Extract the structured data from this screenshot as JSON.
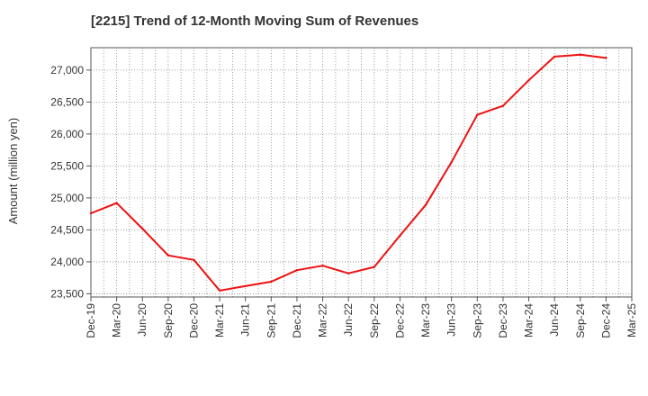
{
  "chart_data": {
    "type": "line",
    "title": "[2215]  Trend of 12-Month Moving Sum of Revenues",
    "xlabel": "",
    "ylabel": "Amount (million yen)",
    "ylim": [
      23450,
      27350
    ],
    "yticks": [
      23500,
      24000,
      24500,
      25000,
      25500,
      26000,
      26500,
      27000
    ],
    "grid": true,
    "legend": "none",
    "line_color": "#ee1111",
    "categories": [
      "Dec-19",
      "Mar-20",
      "Jun-20",
      "Sep-20",
      "Dec-20",
      "Mar-21",
      "Jun-21",
      "Sep-21",
      "Dec-21",
      "Mar-22",
      "Jun-22",
      "Sep-22",
      "Dec-22",
      "Mar-23",
      "Jun-23",
      "Sep-23",
      "Dec-23",
      "Mar-24",
      "Jun-24",
      "Sep-24",
      "Dec-24",
      "Mar-25"
    ],
    "series": [
      {
        "values": [
          24760,
          24920,
          24520,
          24100,
          24030,
          23550,
          23620,
          23690,
          23870,
          23940,
          23820,
          23920,
          24410,
          24890,
          25560,
          26300,
          26440,
          26840,
          27210,
          27240,
          27190,
          null
        ]
      }
    ]
  }
}
